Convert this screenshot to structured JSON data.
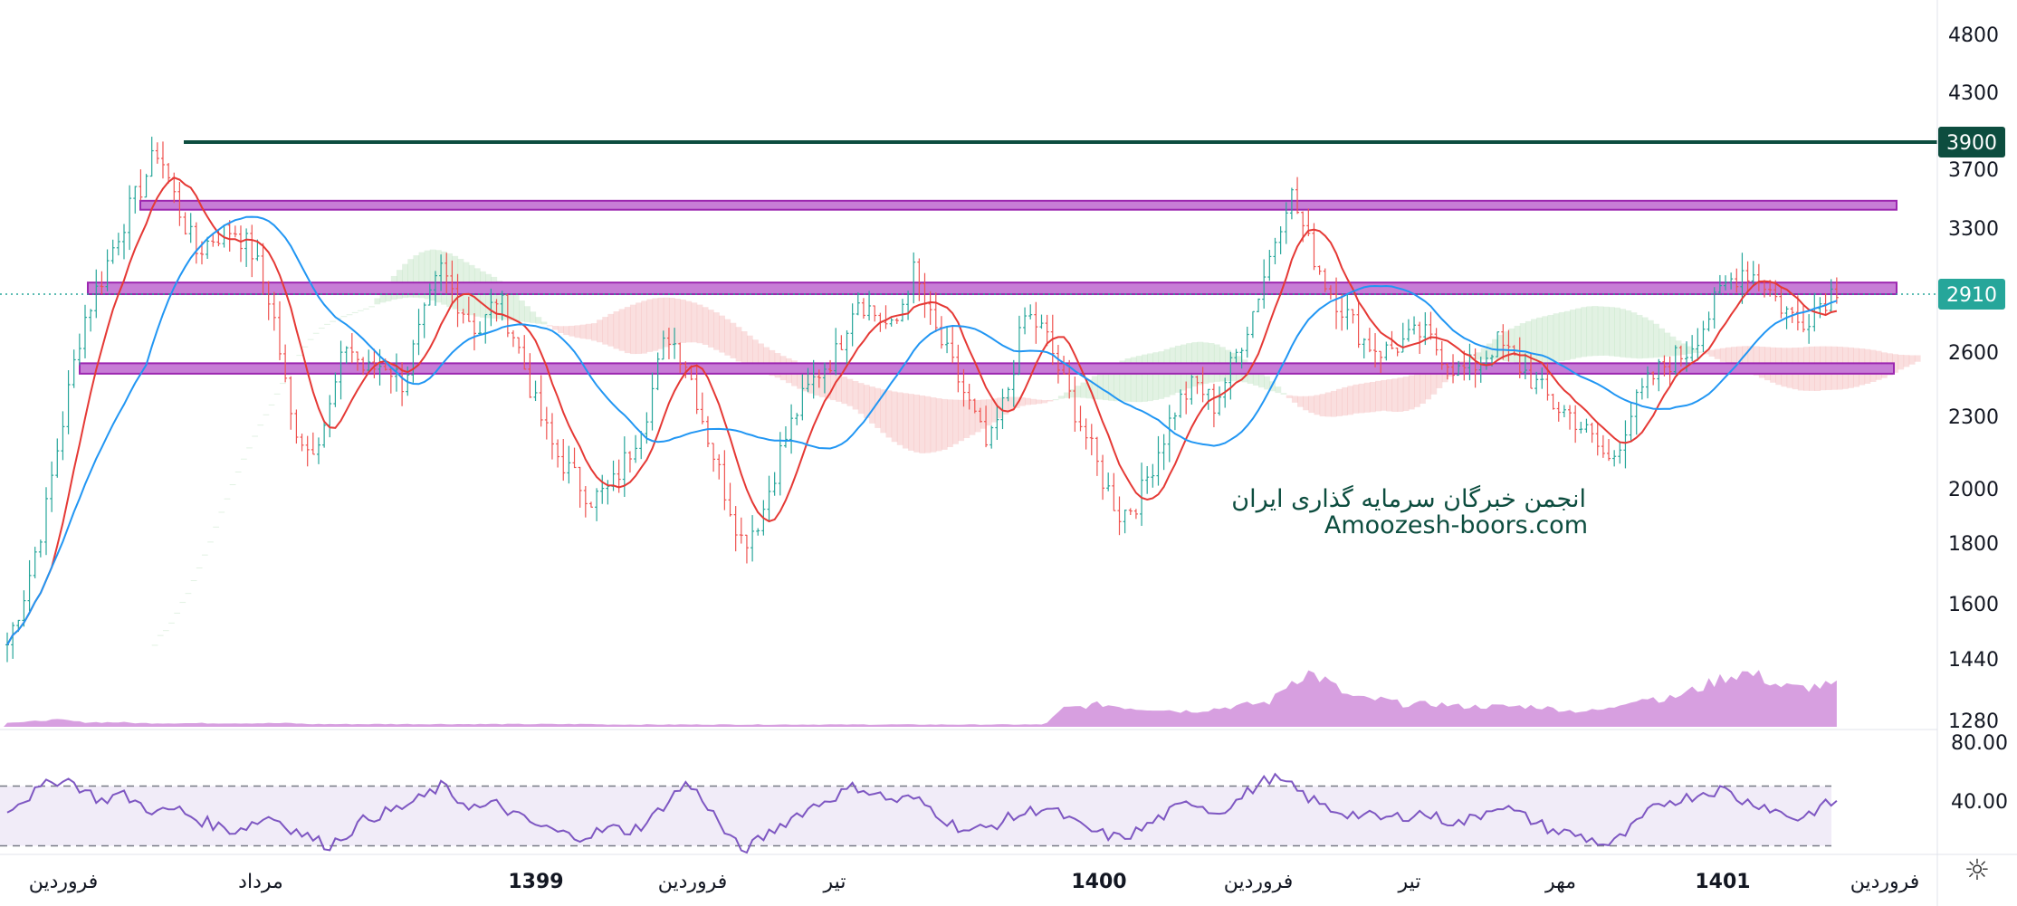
{
  "chart_data": {
    "type": "candlestick",
    "price_axis": {
      "ticks": [
        4800,
        4300,
        3900,
        3700,
        3300,
        2910,
        2600,
        2300,
        2000,
        1800,
        1600,
        1440,
        1280
      ],
      "ylim": [
        1280,
        4800
      ],
      "scale": "log"
    },
    "current_price": 2910,
    "resistance_line": 3900,
    "zones": [
      {
        "from": 3420,
        "to": 3480
      },
      {
        "from": 2910,
        "to": 2975
      },
      {
        "from": 2495,
        "to": 2545
      }
    ],
    "time_axis": {
      "labels": [
        "فروردین",
        "مرداد",
        "1399",
        "فروردین",
        "تیر",
        "1400",
        "فروردین",
        "تیر",
        "مهر",
        "1401",
        "فروردین"
      ],
      "bold": [
        false,
        false,
        true,
        false,
        false,
        true,
        false,
        false,
        false,
        true,
        false
      ]
    },
    "price_path": [
      1480,
      1650,
      1900,
      2300,
      2750,
      3000,
      3300,
      3550,
      3850,
      3450,
      3150,
      3250,
      3300,
      3150,
      2850,
      2300,
      2150,
      2300,
      2650,
      2500,
      2550,
      2450,
      2750,
      3050,
      2850,
      2700,
      2900,
      2650,
      2350,
      2150,
      2050,
      1960,
      2000,
      2150,
      2350,
      2700,
      2550,
      2250,
      2000,
      1800,
      1900,
      2150,
      2350,
      2500,
      2600,
      2900,
      2800,
      2700,
      3050,
      2750,
      2550,
      2350,
      2150,
      2400,
      2800,
      2700,
      2450,
      2250,
      2050,
      1900,
      1960,
      2150,
      2350,
      2450,
      2350,
      2550,
      2800,
      3150,
      3550,
      3200,
      2950,
      2800,
      2650,
      2600,
      2650,
      2700,
      2600,
      2500,
      2550,
      2650,
      2550,
      2450,
      2350,
      2300,
      2200,
      2100,
      2300,
      2450,
      2550,
      2600,
      2750,
      2950,
      3050,
      3000,
      2850,
      2750,
      2850,
      2950
    ],
    "volume_profile": [
      1,
      1,
      1.5,
      1.5,
      1,
      1,
      1,
      0.8,
      0.8,
      0.8,
      0.8,
      0.8,
      0.8,
      0.8,
      0.8,
      0.8,
      0.6,
      0.6,
      0.6,
      0.6,
      0.6,
      0.6,
      0.6,
      0.6,
      0.6,
      0.6,
      0.6,
      0.6,
      0.6,
      0.6,
      0.6,
      0.6,
      0.5,
      0.5,
      0.5,
      0.5,
      0.5,
      0.5,
      0.5,
      0.5,
      0.5,
      0.5,
      0.5,
      0.5,
      0.5,
      0.5,
      0.5,
      0.5,
      0.5,
      0.5,
      0.5,
      0.5,
      0.5,
      0.5,
      0.5,
      0.5,
      4,
      4.5,
      5,
      4.5,
      4,
      4,
      3.5,
      3.5,
      4,
      4.5,
      5,
      5.5,
      10,
      12,
      10,
      7,
      6,
      6,
      5,
      5,
      5,
      4.5,
      4.5,
      4.5,
      4.5,
      4.5,
      4,
      3.5,
      3.5,
      4,
      6,
      6.5,
      6,
      7.5,
      9,
      11,
      12,
      11,
      9,
      8.5,
      9,
      9
    ],
    "rsi": {
      "ticks": [
        80.0,
        40.0
      ],
      "bands": [
        70,
        30
      ],
      "values": [
        55,
        62,
        70,
        76,
        68,
        60,
        65,
        58,
        52,
        55,
        48,
        44,
        40,
        45,
        50,
        42,
        36,
        30,
        38,
        48,
        52,
        56,
        62,
        70,
        60,
        55,
        58,
        50,
        44,
        40,
        36,
        38,
        42,
        40,
        46,
        60,
        72,
        60,
        40,
        26,
        35,
        44,
        52,
        58,
        64,
        70,
        65,
        60,
        62,
        55,
        45,
        40,
        42,
        48,
        52,
        56,
        50,
        42,
        38,
        35,
        40,
        48,
        55,
        60,
        52,
        58,
        68,
        76,
        70,
        62,
        55,
        52,
        50,
        48,
        50,
        52,
        48,
        45,
        50,
        58,
        52,
        46,
        40,
        38,
        34,
        30,
        40,
        52,
        60,
        62,
        66,
        68,
        60,
        58,
        52,
        48,
        55,
        60
      ]
    },
    "series": [
      {
        "color": "#e53935"
      },
      {
        "color": "#2196f3"
      }
    ],
    "colors": {
      "up": "#26a69a",
      "down": "#ef5350",
      "zone_fill": "#c77dd6",
      "zone_stroke": "#9c27b0",
      "resistance": "#0d4d3f",
      "price_badge": "#26a69a",
      "volume": "#c97fd6",
      "rsi_line": "#7e57c2",
      "rsi_band": "#ede7f6",
      "cloud_green": "#a5d6a7",
      "cloud_red": "#ef9a9a"
    }
  },
  "watermark": {
    "line1": "انجمن خبرگان سرمایه گذاری ایران",
    "line2": "Amoozesh-boors.com"
  },
  "toolbar": {
    "settings_icon": "☼"
  }
}
